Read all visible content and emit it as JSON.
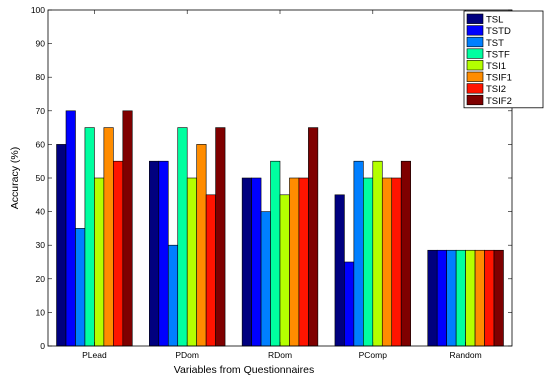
{
  "chart_data": {
    "type": "bar",
    "xlabel": "Variables from Questionnaires",
    "ylabel": "Accuracy (%)",
    "ylim": [
      0,
      100
    ],
    "yticks": [
      0,
      10,
      20,
      30,
      40,
      50,
      60,
      70,
      80,
      90,
      100
    ],
    "categories": [
      "PLead",
      "PDom",
      "RDom",
      "PComp",
      "Random"
    ],
    "legend_position": "top-right",
    "grid": false,
    "series": [
      {
        "name": "TSL",
        "color": "#00007f",
        "values": [
          60,
          55,
          50,
          45,
          28.5
        ]
      },
      {
        "name": "TSTD",
        "color": "#0000ff",
        "values": [
          70,
          55,
          50,
          25,
          28.5
        ]
      },
      {
        "name": "TST",
        "color": "#007fff",
        "values": [
          35,
          30,
          40,
          55,
          28.5
        ]
      },
      {
        "name": "TSTF",
        "color": "#00ffa0",
        "values": [
          65,
          65,
          55,
          50,
          28.5
        ]
      },
      {
        "name": "TSI1",
        "color": "#b4ff00",
        "values": [
          50,
          50,
          45,
          55,
          28.5
        ]
      },
      {
        "name": "TSIF1",
        "color": "#ff8c00",
        "values": [
          65,
          60,
          50,
          50,
          28.5
        ]
      },
      {
        "name": "TSI2",
        "color": "#ff1400",
        "values": [
          55,
          45,
          50,
          50,
          28.5
        ]
      },
      {
        "name": "TSIF2",
        "color": "#7f0000",
        "values": [
          70,
          65,
          65,
          55,
          28.5
        ]
      }
    ]
  }
}
